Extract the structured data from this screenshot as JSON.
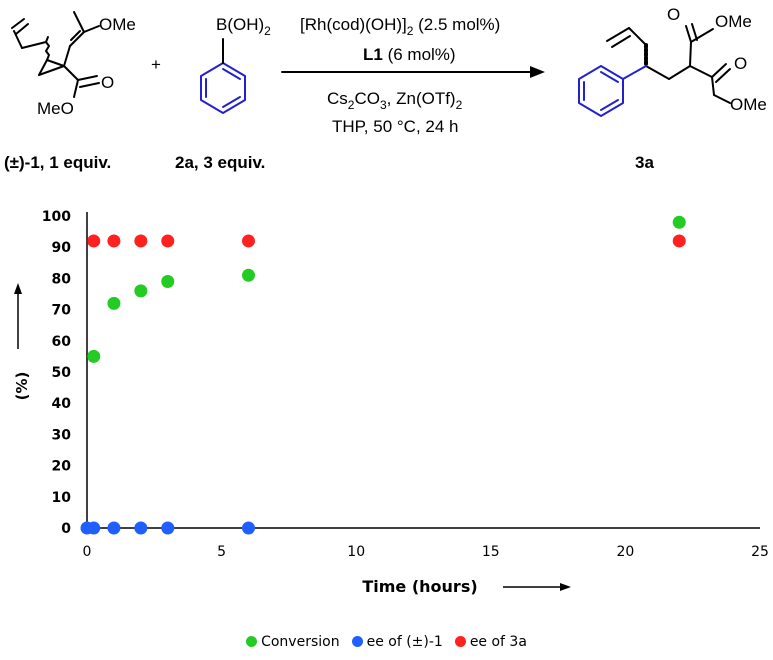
{
  "scheme": {
    "reactant1_ester_top": "OMe",
    "reactant1_ester_bottom": "MeO",
    "reactant1_oxygen": "O",
    "reactant1_label_prefix": "(±)",
    "reactant1_label_suffix": "-1, 1 equiv.",
    "plus": "+",
    "boronic_acid": "B(OH)",
    "boronic_acid_sub": "2",
    "reactant2_label": "2a, 3 equiv.",
    "catalyst_main": "[Rh(cod)(OH)]",
    "catalyst_sub": "2",
    "catalyst_loading": " (2.5 mol%)",
    "ligand_bold": "L1",
    "ligand_loading": " (6 mol%)",
    "base_cs": "Cs",
    "base_cs_sub": "2",
    "base_co": "CO",
    "base_co_sub": "3",
    "additive": ", Zn(OTf)",
    "additive_sub": "2",
    "conditions": "THP, 50 °C, 24 h",
    "product_ester_top": "OMe",
    "product_ester_bottom": "OMe",
    "product_oxygen": "O",
    "product_label": "3a",
    "accent_color": "#2222cc"
  },
  "chart_data": {
    "type": "scatter",
    "xlabel": "Time (hours)",
    "ylabel": "(%)",
    "xlim": [
      0,
      25
    ],
    "ylim": [
      0,
      100
    ],
    "xticks": [
      0,
      5,
      10,
      15,
      20,
      25
    ],
    "yticks": [
      0,
      10,
      20,
      30,
      40,
      50,
      60,
      70,
      80,
      90,
      100
    ],
    "grid": false,
    "legend_position": "bottom",
    "series": [
      {
        "name": "Conversion",
        "color": "#22cc22",
        "points": [
          [
            0.25,
            55
          ],
          [
            1,
            72
          ],
          [
            2,
            76
          ],
          [
            3,
            79
          ],
          [
            6,
            81
          ],
          [
            22,
            98
          ]
        ]
      },
      {
        "name": "ee of (±)-1",
        "color": "#1f5fff",
        "points": [
          [
            0,
            0
          ],
          [
            0.25,
            0
          ],
          [
            1,
            0
          ],
          [
            2,
            0
          ],
          [
            3,
            0
          ],
          [
            6,
            0
          ]
        ]
      },
      {
        "name": "ee of 3a",
        "color": "#ff2020",
        "points": [
          [
            0.25,
            92
          ],
          [
            1,
            92
          ],
          [
            2,
            92
          ],
          [
            3,
            92
          ],
          [
            6,
            92
          ],
          [
            22,
            92
          ]
        ]
      }
    ]
  }
}
